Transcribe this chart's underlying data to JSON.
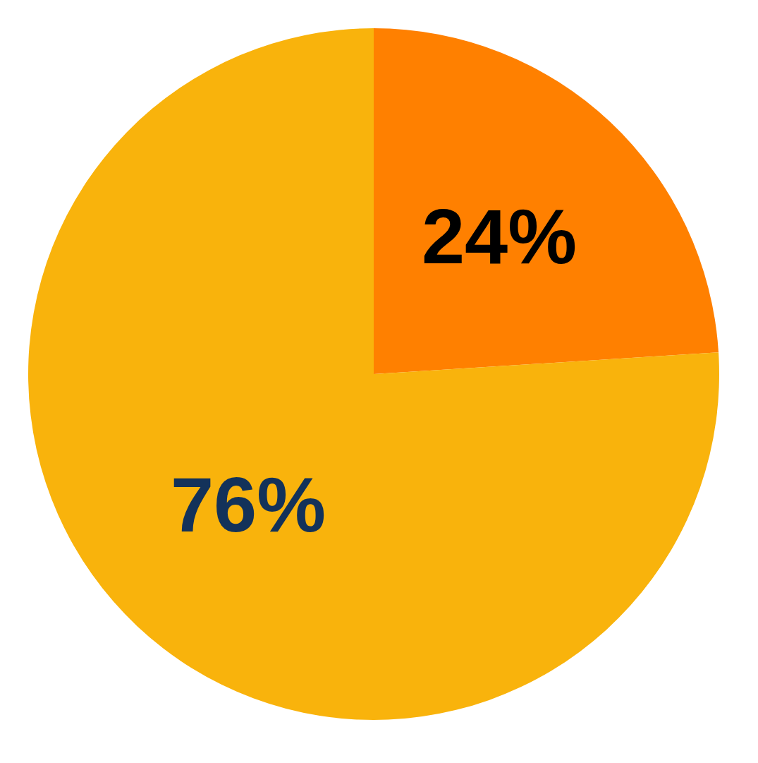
{
  "chart_data": {
    "type": "pie",
    "categories": [
      null,
      null
    ],
    "values": [
      24,
      76
    ],
    "value_labels": [
      "24%",
      "76%"
    ],
    "colors": [
      "#ff8000",
      "#f9b30c"
    ],
    "legend": false
  }
}
